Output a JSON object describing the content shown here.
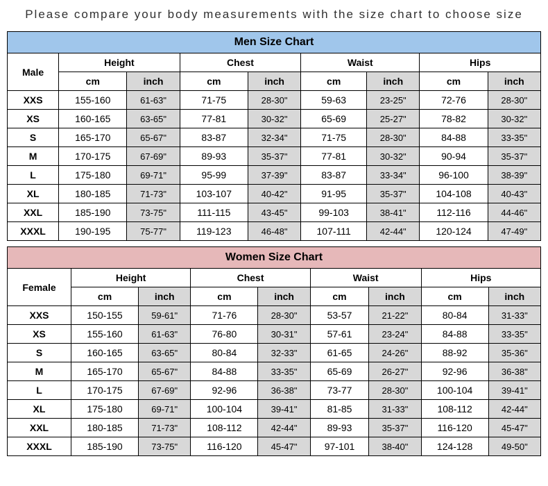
{
  "instruction_text": "Please compare your body measurements with the size chart to choose size",
  "colors": {
    "men_header_bg": "#a0c6eb",
    "women_header_bg": "#e6b8b9",
    "alt_column_bg": "#d8d8d8",
    "border": "#000000",
    "text": "#000000",
    "background": "#ffffff"
  },
  "typography": {
    "font_family": "Arial, sans-serif",
    "instruction_fontsize": 17,
    "instruction_letter_spacing": 2,
    "title_fontsize": 16,
    "cell_fontsize": 14
  },
  "column_headers": {
    "measurements": [
      "Height",
      "Chest",
      "Waist",
      "Hips"
    ],
    "units": [
      "cm",
      "inch"
    ]
  },
  "charts": [
    {
      "type": "table",
      "title": "Men Size Chart",
      "gender_label": "Male",
      "class": "men",
      "rows": [
        {
          "size": "XXS",
          "height_cm": "155-160",
          "height_in": "61-63\"",
          "chest_cm": "71-75",
          "chest_in": "28-30\"",
          "waist_cm": "59-63",
          "waist_in": "23-25\"",
          "hips_cm": "72-76",
          "hips_in": "28-30\""
        },
        {
          "size": "XS",
          "height_cm": "160-165",
          "height_in": "63-65\"",
          "chest_cm": "77-81",
          "chest_in": "30-32\"",
          "waist_cm": "65-69",
          "waist_in": "25-27\"",
          "hips_cm": "78-82",
          "hips_in": "30-32\""
        },
        {
          "size": "S",
          "height_cm": "165-170",
          "height_in": "65-67\"",
          "chest_cm": "83-87",
          "chest_in": "32-34\"",
          "waist_cm": "71-75",
          "waist_in": "28-30\"",
          "hips_cm": "84-88",
          "hips_in": "33-35\""
        },
        {
          "size": "M",
          "height_cm": "170-175",
          "height_in": "67-69\"",
          "chest_cm": "89-93",
          "chest_in": "35-37\"",
          "waist_cm": "77-81",
          "waist_in": "30-32\"",
          "hips_cm": "90-94",
          "hips_in": "35-37\""
        },
        {
          "size": "L",
          "height_cm": "175-180",
          "height_in": "69-71\"",
          "chest_cm": "95-99",
          "chest_in": "37-39\"",
          "waist_cm": "83-87",
          "waist_in": "33-34\"",
          "hips_cm": "96-100",
          "hips_in": "38-39\""
        },
        {
          "size": "XL",
          "height_cm": "180-185",
          "height_in": "71-73\"",
          "chest_cm": "103-107",
          "chest_in": "40-42\"",
          "waist_cm": "91-95",
          "waist_in": "35-37\"",
          "hips_cm": "104-108",
          "hips_in": "40-43\""
        },
        {
          "size": "XXL",
          "height_cm": "185-190",
          "height_in": "73-75\"",
          "chest_cm": "111-115",
          "chest_in": "43-45\"",
          "waist_cm": "99-103",
          "waist_in": "38-41\"",
          "hips_cm": "112-116",
          "hips_in": "44-46\""
        },
        {
          "size": "XXXL",
          "height_cm": "190-195",
          "height_in": "75-77\"",
          "chest_cm": "119-123",
          "chest_in": "46-48\"",
          "waist_cm": "107-111",
          "waist_in": "42-44\"",
          "hips_cm": "120-124",
          "hips_in": "47-49\""
        }
      ]
    },
    {
      "type": "table",
      "title": "Women Size Chart",
      "gender_label": "Female",
      "class": "women",
      "rows": [
        {
          "size": "XXS",
          "height_cm": "150-155",
          "height_in": "59-61\"",
          "chest_cm": "71-76",
          "chest_in": "28-30\"",
          "waist_cm": "53-57",
          "waist_in": "21-22\"",
          "hips_cm": "80-84",
          "hips_in": "31-33\""
        },
        {
          "size": "XS",
          "height_cm": "155-160",
          "height_in": "61-63\"",
          "chest_cm": "76-80",
          "chest_in": "30-31\"",
          "waist_cm": "57-61",
          "waist_in": "23-24\"",
          "hips_cm": "84-88",
          "hips_in": "33-35\""
        },
        {
          "size": "S",
          "height_cm": "160-165",
          "height_in": "63-65\"",
          "chest_cm": "80-84",
          "chest_in": "32-33\"",
          "waist_cm": "61-65",
          "waist_in": "24-26\"",
          "hips_cm": "88-92",
          "hips_in": "35-36\""
        },
        {
          "size": "M",
          "height_cm": "165-170",
          "height_in": "65-67\"",
          "chest_cm": "84-88",
          "chest_in": "33-35\"",
          "waist_cm": "65-69",
          "waist_in": "26-27\"",
          "hips_cm": "92-96",
          "hips_in": "36-38\""
        },
        {
          "size": "L",
          "height_cm": "170-175",
          "height_in": "67-69\"",
          "chest_cm": "92-96",
          "chest_in": "36-38\"",
          "waist_cm": "73-77",
          "waist_in": "28-30\"",
          "hips_cm": "100-104",
          "hips_in": "39-41\""
        },
        {
          "size": "XL",
          "height_cm": "175-180",
          "height_in": "69-71\"",
          "chest_cm": "100-104",
          "chest_in": "39-41\"",
          "waist_cm": "81-85",
          "waist_in": "31-33\"",
          "hips_cm": "108-112",
          "hips_in": "42-44\""
        },
        {
          "size": "XXL",
          "height_cm": "180-185",
          "height_in": "71-73\"",
          "chest_cm": "108-112",
          "chest_in": "42-44\"",
          "waist_cm": "89-93",
          "waist_in": "35-37\"",
          "hips_cm": "116-120",
          "hips_in": "45-47\""
        },
        {
          "size": "XXXL",
          "height_cm": "185-190",
          "height_in": "73-75\"",
          "chest_cm": "116-120",
          "chest_in": "45-47\"",
          "waist_cm": "97-101",
          "waist_in": "38-40\"",
          "hips_cm": "124-128",
          "hips_in": "49-50\""
        }
      ]
    }
  ]
}
